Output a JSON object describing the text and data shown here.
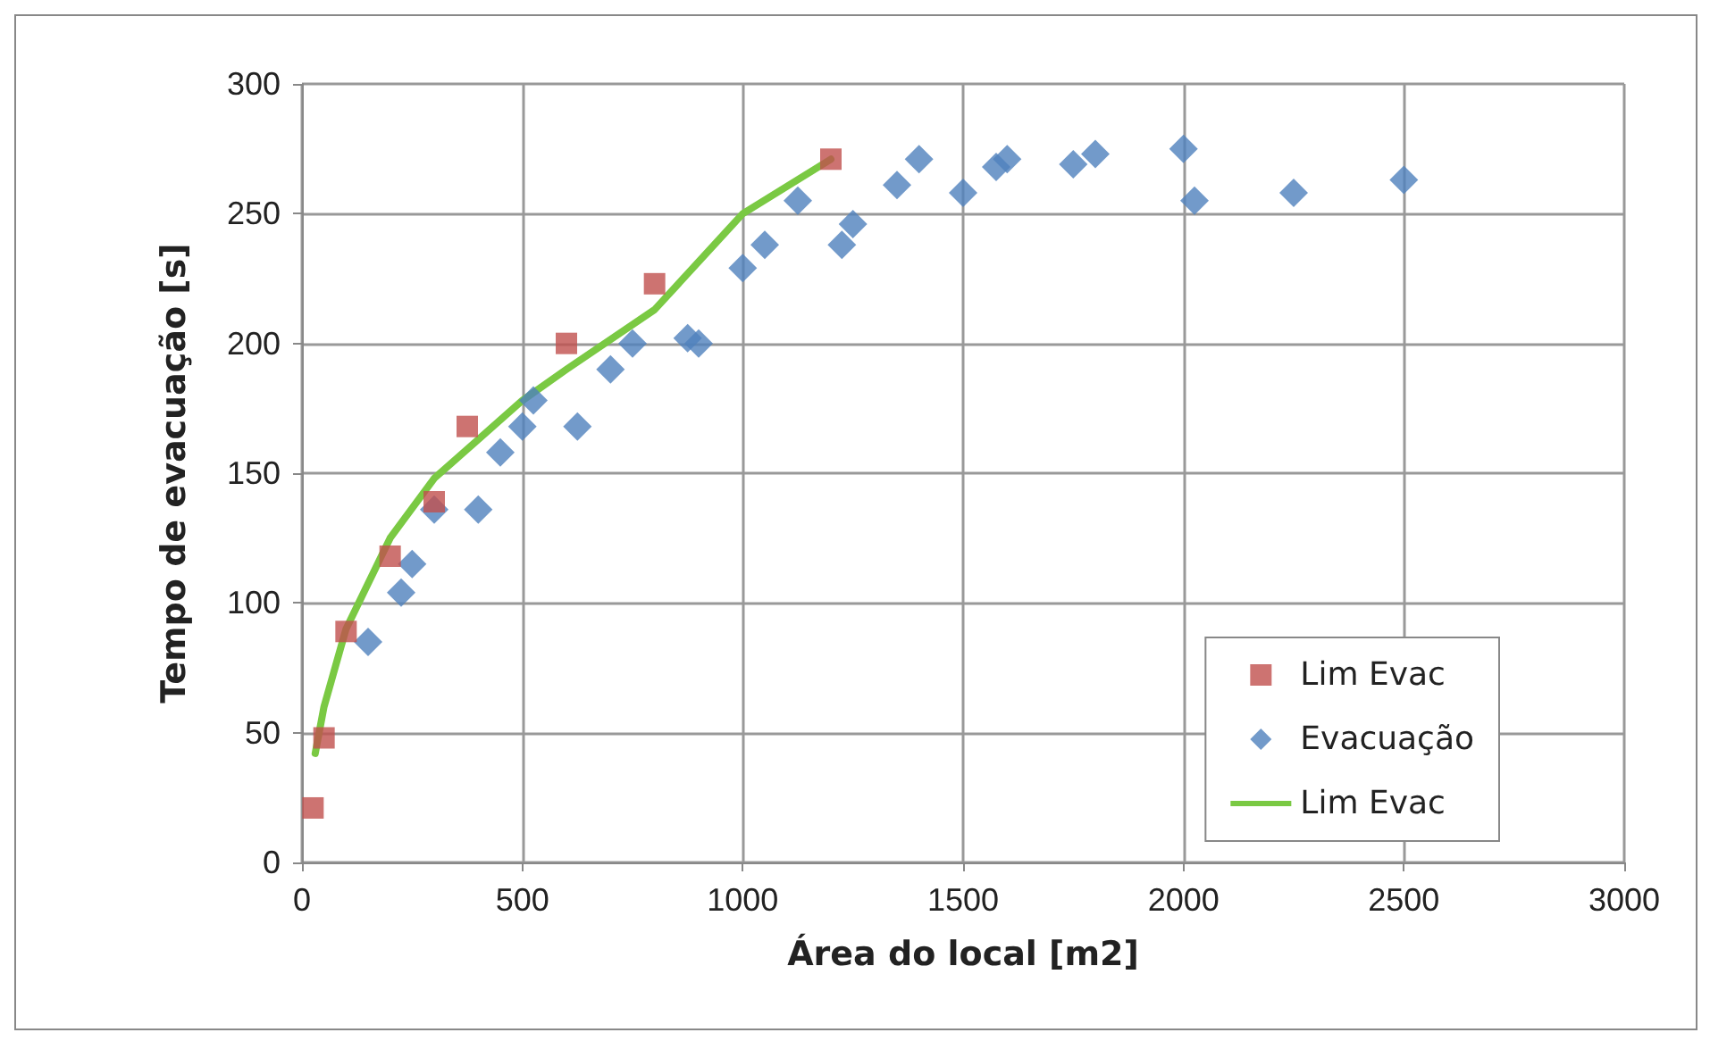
{
  "chart_data": {
    "type": "scatter",
    "xlabel": "Área do local [m2]",
    "ylabel": "Tempo de evacuação [s]",
    "xlim": [
      0,
      3000
    ],
    "xticks": [
      0,
      500,
      1000,
      1500,
      2000,
      2500,
      3000
    ],
    "ylim": [
      0,
      300
    ],
    "yticks": [
      0,
      50,
      100,
      150,
      200,
      250,
      300
    ],
    "grid": true,
    "legend": "bottom right",
    "series": [
      {
        "name": "Lim Evac",
        "marker": "square",
        "color": "#c0504d",
        "x": [
          25,
          50,
          100,
          200,
          300,
          375,
          600,
          800,
          1200
        ],
        "values": [
          21,
          48,
          89,
          118,
          139,
          168,
          200,
          223,
          271
        ]
      },
      {
        "name": "Evacuação",
        "marker": "diamond",
        "color": "#4f81bd",
        "x": [
          150,
          225,
          250,
          300,
          400,
          450,
          500,
          525,
          625,
          700,
          750,
          875,
          900,
          1000,
          1050,
          1125,
          1225,
          1250,
          1350,
          1400,
          1500,
          1575,
          1600,
          1750,
          1800,
          2000,
          2025,
          2250,
          2500
        ],
        "values": [
          85,
          104,
          115,
          136,
          136,
          158,
          168,
          178,
          168,
          190,
          200,
          202,
          200,
          229,
          238,
          255,
          238,
          246,
          261,
          271,
          258,
          268,
          271,
          269,
          273,
          275,
          255,
          258,
          263
        ]
      },
      {
        "name": "Lim Evac",
        "type": "line",
        "marker": "none",
        "line_style": "solid",
        "color": "#7ac943",
        "x": [
          30,
          50,
          100,
          200,
          300,
          400,
          500,
          600,
          800,
          1000,
          1200
        ],
        "values": [
          42,
          60,
          90,
          125,
          148,
          163,
          178,
          190,
          213,
          250,
          271
        ]
      }
    ]
  }
}
